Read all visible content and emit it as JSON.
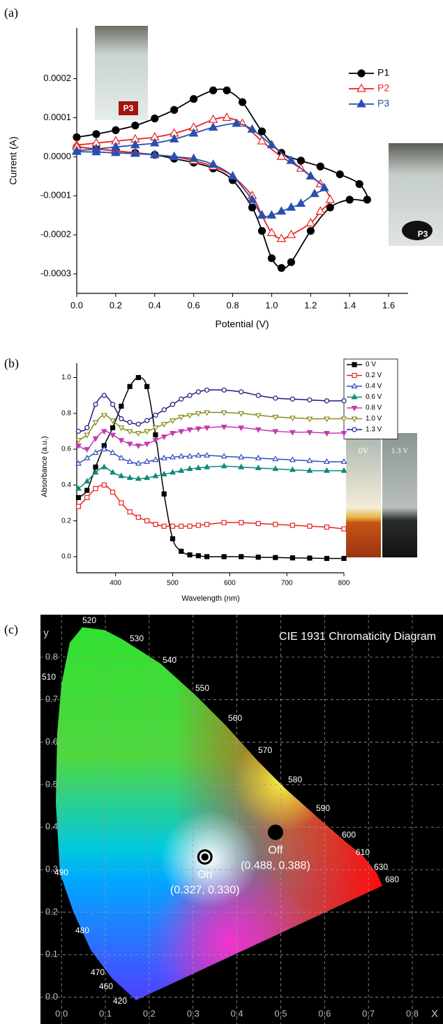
{
  "chart_data": [
    {
      "panel_label": "(a)",
      "type": "line",
      "xlabel": "Potential (V)",
      "ylabel": "Current (A)",
      "xlim": [
        0,
        1.7
      ],
      "ylim": [
        -0.00035,
        0.00033
      ],
      "xticks": [
        {
          "value": 0,
          "label": "0.0"
        },
        0.2,
        0.4,
        0.6,
        0.8,
        {
          "value": 1,
          "label": "1.0"
        },
        1.2,
        1.4,
        1.6
      ],
      "yticks": [
        -0.0003,
        -0.0002,
        -0.0001,
        {
          "value": 0,
          "label": "0.0000"
        },
        0.0001,
        0.0002
      ],
      "legend_position": "top-right",
      "annotations": [
        "P3",
        "P3"
      ],
      "series": [
        {
          "name": "P1",
          "color": "#000000",
          "marker": "circle",
          "marker_filled": true,
          "x": [
            0,
            0.1,
            0.2,
            0.3,
            0.4,
            0.5,
            0.6,
            0.7,
            0.77,
            0.85,
            0.95,
            1.05,
            1.15,
            1.25,
            1.35,
            1.45,
            1.49,
            1.4,
            1.3,
            1.2,
            1.1,
            1.05,
            1.0,
            0.95,
            0.9,
            0.8,
            0.7,
            0.6,
            0.5,
            0.4,
            0.3,
            0.2,
            0.1,
            0
          ],
          "values": [
            5e-05,
            5.8e-05,
            6.8e-05,
            8e-05,
            9.8e-05,
            0.00012,
            0.000148,
            0.00017,
            0.00017,
            0.00014,
            6.5e-05,
            1e-05,
            -1e-05,
            -2.5e-05,
            -4.5e-05,
            -7e-05,
            -0.00011,
            -0.00011,
            -0.00013,
            -0.00019,
            -0.00027,
            -0.000285,
            -0.00026,
            -0.00019,
            -0.00013,
            -6e-05,
            -3e-05,
            -1.5e-05,
            -5e-06,
            5e-06,
            1e-05,
            1.5e-05,
            2e-05,
            2.5e-05
          ]
        },
        {
          "name": "P2",
          "color": "#e8231f",
          "marker": "triangle",
          "marker_filled": false,
          "x": [
            0,
            0.1,
            0.2,
            0.3,
            0.4,
            0.5,
            0.6,
            0.7,
            0.77,
            0.85,
            0.95,
            1.05,
            1.15,
            1.25,
            1.3,
            1.25,
            1.2,
            1.1,
            1.05,
            1.0,
            0.95,
            0.9,
            0.8,
            0.7,
            0.6,
            0.5,
            0.4,
            0.3,
            0.2,
            0.1,
            0
          ],
          "values": [
            3e-05,
            3.5e-05,
            4e-05,
            4.5e-05,
            5e-05,
            6e-05,
            7.5e-05,
            9.5e-05,
            0.0001,
            8.5e-05,
            4e-05,
            0,
            -3e-05,
            -7e-05,
            -0.00011,
            -0.00014,
            -0.00017,
            -0.0002,
            -0.00021,
            -0.000195,
            -0.00015,
            -0.0001,
            -5e-05,
            -2.5e-05,
            -1e-05,
            0,
            5e-06,
            1e-05,
            1.5e-05,
            2e-05,
            2.5e-05
          ]
        },
        {
          "name": "P3",
          "color": "#2a4fb0",
          "marker": "triangle",
          "marker_filled": true,
          "x": [
            0,
            0.1,
            0.2,
            0.3,
            0.4,
            0.5,
            0.6,
            0.7,
            0.82,
            0.9,
            1.0,
            1.1,
            1.2,
            1.27,
            1.22,
            1.15,
            1.1,
            1.05,
            1.0,
            0.95,
            0.9,
            0.8,
            0.7,
            0.6,
            0.5,
            0.4,
            0.3,
            0.2,
            0.1,
            0
          ],
          "values": [
            1.5e-05,
            2e-05,
            2.5e-05,
            3e-05,
            3.5e-05,
            4.5e-05,
            6e-05,
            7.5e-05,
            8.5e-05,
            7e-05,
            3e-05,
            -1e-05,
            -5e-05,
            -8e-05,
            -9.5e-05,
            -0.00012,
            -0.00013,
            -0.00014,
            -0.00015,
            -0.00015,
            -0.00011,
            -5e-05,
            -2e-05,
            -5e-06,
            0,
            5e-06,
            8e-06,
            1e-05,
            1.2e-05,
            1.3e-05
          ]
        }
      ]
    },
    {
      "panel_label": "(b)",
      "type": "line",
      "xlabel": "Wavelength (nm)",
      "ylabel": "Absorbance (a.u.)",
      "xlim": [
        332,
        800
      ],
      "ylim": [
        -0.09,
        1.08
      ],
      "xticks": [
        400,
        500,
        600,
        700,
        800
      ],
      "yticks": [
        {
          "value": 0,
          "label": "0.0"
        },
        0.2,
        0.4,
        0.6,
        0.8,
        {
          "value": 1,
          "label": "1.0"
        }
      ],
      "legend_position": "right",
      "annotations": [
        "0V",
        "1.3 V"
      ],
      "x": [
        335,
        350,
        365,
        380,
        395,
        410,
        425,
        440,
        455,
        470,
        485,
        500,
        515,
        530,
        545,
        560,
        590,
        620,
        650,
        680,
        710,
        740,
        770,
        800
      ],
      "series": [
        {
          "name": "0 V",
          "color": "#000000",
          "marker": "square",
          "marker_filled": true,
          "values": [
            0.33,
            0.37,
            0.5,
            0.62,
            0.72,
            0.84,
            0.95,
            1.0,
            0.95,
            0.68,
            0.35,
            0.1,
            0.03,
            0.01,
            0.005,
            0,
            0,
            0,
            -0.003,
            -0.005,
            -0.007,
            -0.008,
            -0.01,
            -0.01
          ]
        },
        {
          "name": "0.2 V",
          "color": "#e8231f",
          "marker": "square",
          "marker_filled": false,
          "values": [
            0.28,
            0.33,
            0.38,
            0.4,
            0.36,
            0.3,
            0.25,
            0.22,
            0.2,
            0.18,
            0.17,
            0.17,
            0.17,
            0.17,
            0.175,
            0.18,
            0.19,
            0.19,
            0.185,
            0.18,
            0.175,
            0.17,
            0.165,
            0.155
          ]
        },
        {
          "name": "0.4 V",
          "color": "#2f4fc0",
          "marker": "triangle",
          "marker_filled": false,
          "values": [
            0.52,
            0.55,
            0.58,
            0.6,
            0.58,
            0.55,
            0.53,
            0.52,
            0.53,
            0.54,
            0.55,
            0.555,
            0.56,
            0.56,
            0.565,
            0.565,
            0.56,
            0.555,
            0.55,
            0.545,
            0.54,
            0.535,
            0.53,
            0.53
          ]
        },
        {
          "name": "0.6 V",
          "color": "#0f8a7a",
          "marker": "triangle",
          "marker_filled": true,
          "values": [
            0.38,
            0.42,
            0.47,
            0.5,
            0.47,
            0.45,
            0.44,
            0.435,
            0.44,
            0.45,
            0.46,
            0.47,
            0.48,
            0.49,
            0.495,
            0.5,
            0.505,
            0.5,
            0.495,
            0.49,
            0.485,
            0.48,
            0.48,
            0.48
          ]
        },
        {
          "name": "0.8 V",
          "color": "#c23bb0",
          "marker": "triangle-down",
          "marker_filled": true,
          "values": [
            0.62,
            0.6,
            0.66,
            0.7,
            0.68,
            0.65,
            0.63,
            0.62,
            0.63,
            0.65,
            0.67,
            0.69,
            0.7,
            0.71,
            0.715,
            0.72,
            0.725,
            0.72,
            0.71,
            0.7,
            0.695,
            0.695,
            0.69,
            0.69
          ]
        },
        {
          "name": "1.0 V",
          "color": "#8a8a1a",
          "marker": "triangle-down",
          "marker_filled": false,
          "values": [
            0.65,
            0.68,
            0.75,
            0.79,
            0.76,
            0.72,
            0.7,
            0.69,
            0.7,
            0.72,
            0.74,
            0.76,
            0.78,
            0.79,
            0.8,
            0.805,
            0.805,
            0.8,
            0.79,
            0.78,
            0.775,
            0.77,
            0.77,
            0.77
          ]
        },
        {
          "name": "1.3 V",
          "color": "#1a1a80",
          "marker": "circle",
          "marker_filled": false,
          "values": [
            0.7,
            0.72,
            0.85,
            0.9,
            0.85,
            0.77,
            0.75,
            0.74,
            0.76,
            0.79,
            0.82,
            0.85,
            0.88,
            0.9,
            0.92,
            0.93,
            0.93,
            0.92,
            0.9,
            0.885,
            0.88,
            0.875,
            0.87,
            0.87
          ]
        }
      ]
    },
    {
      "panel_label": "(c)",
      "type": "scatter",
      "title": "CIE 1931 Chromaticity Diagram",
      "xlabel": "X",
      "ylabel": "y",
      "xlim": [
        -0.048,
        0.87
      ],
      "ylim": [
        -0.063,
        0.9
      ],
      "grid": true,
      "xticks": [
        {
          "value": 0,
          "label": "0.0"
        },
        0.1,
        0.2,
        0.3,
        0.4,
        0.5,
        0.6,
        0.7,
        0.8
      ],
      "yticks": [
        {
          "value": 0,
          "label": "0.0"
        },
        0.1,
        0.2,
        0.3,
        0.4,
        0.5,
        0.6,
        0.7,
        0.8
      ],
      "wavelength_labels": [
        520,
        530,
        540,
        550,
        560,
        570,
        580,
        590,
        600,
        610,
        630,
        680,
        510,
        490,
        480,
        470,
        460,
        420
      ],
      "series": [
        {
          "name": "On",
          "color": "#000000",
          "marker": "ring",
          "x": [
            0.327
          ],
          "values": [
            0.33
          ],
          "value_labels": [
            "(0.327, 0.330)"
          ]
        },
        {
          "name": "Off",
          "color": "#000000",
          "marker": "circle",
          "x": [
            0.488
          ],
          "values": [
            0.388
          ],
          "value_labels": [
            "(0.488, 0.388)"
          ]
        }
      ]
    }
  ]
}
